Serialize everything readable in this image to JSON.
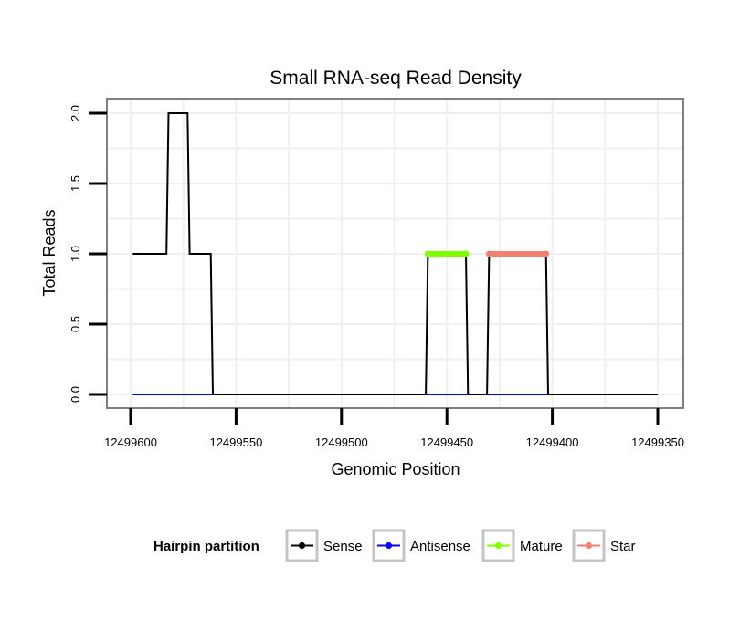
{
  "chart_data": {
    "type": "line",
    "title": "Small RNA-seq Read Density",
    "xlabel": "Genomic Position",
    "ylabel": "Total Reads",
    "x_reversed": true,
    "xlim": [
      12499600,
      12499350
    ],
    "ylim": [
      0,
      2
    ],
    "x_ticks": [
      {
        "value": 12499600,
        "label": "12499600"
      },
      {
        "value": 12499550,
        "label": "12499550"
      },
      {
        "value": 12499500,
        "label": "12499500"
      },
      {
        "value": 12499450,
        "label": "12499450"
      },
      {
        "value": 12499400,
        "label": "12499400"
      },
      {
        "value": 12499350,
        "label": "12499350"
      }
    ],
    "y_ticks": [
      {
        "value": 0,
        "label": "0.0"
      },
      {
        "value": 0.5,
        "label": "0.5"
      },
      {
        "value": 1,
        "label": "1.0"
      },
      {
        "value": 1.5,
        "label": "1.5"
      },
      {
        "value": 2,
        "label": "2.0"
      }
    ],
    "grid": true,
    "legend_position": "bottom",
    "legend_title": "Hairpin partition",
    "series": [
      {
        "name": "Sense",
        "color": "#000000",
        "x": [
          12499599,
          12499583,
          12499582,
          12499573,
          12499572,
          12499562,
          12499561,
          12499460,
          12499459,
          12499441,
          12499440,
          12499431,
          12499430,
          12499403,
          12499402,
          12499350
        ],
        "y": [
          1,
          1,
          2,
          2,
          1,
          1,
          0,
          0,
          1,
          1,
          0,
          0,
          1,
          1,
          0,
          0
        ]
      },
      {
        "name": "Antisense",
        "color": "#0000ff",
        "x": [
          12499599,
          12499350
        ],
        "y": [
          0,
          0
        ]
      },
      {
        "name": "Mature",
        "color": "#80ff00",
        "x": [
          12499459,
          12499441
        ],
        "y": [
          1,
          1
        ]
      },
      {
        "name": "Star",
        "color": "#f08070",
        "x": [
          12499430,
          12499403
        ],
        "y": [
          1,
          1
        ]
      }
    ]
  }
}
